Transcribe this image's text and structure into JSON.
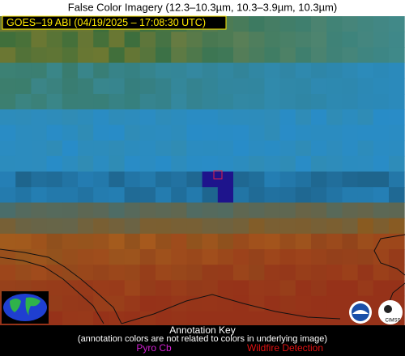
{
  "header": {
    "title": "False Color Imagery (12.3–10.3µm, 10.3–3.9µm, 10.3µm)",
    "satellite_label": "GOES–19 ABI (04/19/2025 – 17:08:30 UTC)"
  },
  "annotation_key": {
    "title": "Annotation Key",
    "note": "(annotation colors are not related to colors in underlying image)",
    "items": [
      "Pyro Cb",
      "Wildfire Detection"
    ]
  },
  "logos": {
    "cimss": "CIMSS"
  }
}
